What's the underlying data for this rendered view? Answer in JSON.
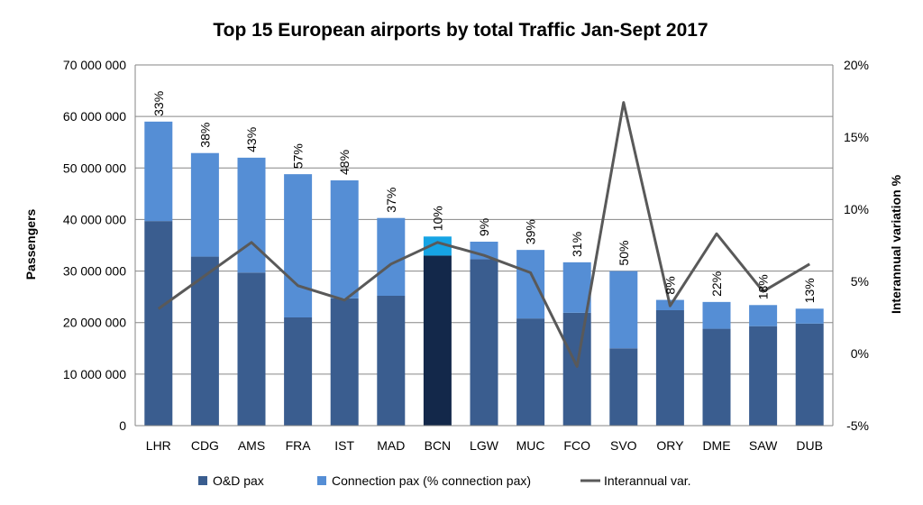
{
  "chart_data": {
    "type": "bar",
    "title": "Top 15 European airports by total Traffic Jan-Sept 2017",
    "ylabel": "Passengers",
    "y2label": "Interannual variation %",
    "ylim": [
      0,
      70000000
    ],
    "y2lim": [
      -5,
      20
    ],
    "y_ticks": [
      "0",
      "10 000 000",
      "20 000 000",
      "30 000 000",
      "40 000 000",
      "50 000 000",
      "60 000 000",
      "70 000 000"
    ],
    "y2_ticks": [
      "-5%",
      "0%",
      "5%",
      "10%",
      "15%",
      "20%"
    ],
    "grid": true,
    "stacked": true,
    "legend_position": "bottom",
    "categories": [
      "LHR",
      "CDG",
      "AMS",
      "FRA",
      "IST",
      "MAD",
      "BCN",
      "LGW",
      "MUC",
      "FCO",
      "SVO",
      "ORY",
      "DME",
      "SAW",
      "DUB"
    ],
    "highlight_category": "BCN",
    "series": [
      {
        "name": "O&D pax",
        "kind": "bar",
        "color": "#3A5D8F",
        "highlight_color": "#13284A",
        "values": [
          39700000,
          32800000,
          29700000,
          21000000,
          24700000,
          25200000,
          33000000,
          32300000,
          20800000,
          21900000,
          15000000,
          22400000,
          18800000,
          19300000,
          19800000
        ]
      },
      {
        "name": "Connection pax (% connection pax)",
        "kind": "bar",
        "color": "#558ED5",
        "highlight_color": "#16A4E4",
        "values": [
          19300000,
          20100000,
          22300000,
          27800000,
          22900000,
          15100000,
          3700000,
          3400000,
          13300000,
          9800000,
          15000000,
          2000000,
          5200000,
          4100000,
          2900000
        ]
      },
      {
        "name": "Interannual var.",
        "kind": "line",
        "axis": "secondary",
        "color": "#595959",
        "values": [
          3.1,
          5.4,
          7.7,
          4.7,
          3.7,
          6.2,
          7.7,
          6.8,
          5.6,
          -0.9,
          17.4,
          3.3,
          8.3,
          4.3,
          6.2
        ]
      }
    ],
    "bar_labels": [
      "33%",
      "38%",
      "43%",
      "57%",
      "48%",
      "37%",
      "10%",
      "9%",
      "39%",
      "31%",
      "50%",
      "8%",
      "22%",
      "18%",
      "13%"
    ]
  }
}
